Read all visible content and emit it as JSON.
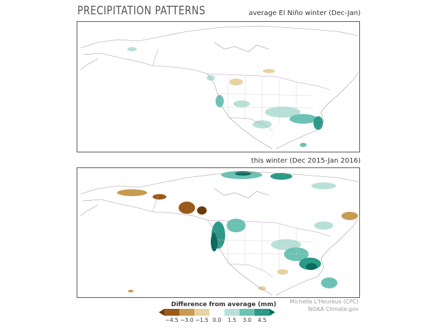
{
  "header": {
    "title": "PRECIPITATION PATTERNS",
    "map1_subtitle": "average El Niño winter (Dec-Jan)",
    "map2_subtitle": "this winter (Dec 2015-Jan 2016)"
  },
  "legend": {
    "title": "Difference from average (mm)",
    "ticks": [
      "−4.5",
      "−3.0",
      "−1.5",
      "0.0",
      "1.5",
      "3.0",
      "4.5"
    ],
    "colors": [
      "#6b3a0a",
      "#9a5a1c",
      "#c89a52",
      "#e8d2a0",
      "#ffffff",
      "#b8e0d8",
      "#6cc2b4",
      "#2c9a88",
      "#0c6a5e"
    ]
  },
  "credits": {
    "author": "Michelle L'Heureux (CPC)",
    "source": "NOAA Climate.gov"
  },
  "colors": {
    "wet_light": "#b8e0d8",
    "wet_mid": "#6cc2b4",
    "wet_dark": "#0c6a5e",
    "dry_light": "#e8d2a0",
    "dry_mid": "#c89a52",
    "dry_dark": "#6b3a0a",
    "coast": "#9a9a9a",
    "country_border": "#b98cb9"
  }
}
